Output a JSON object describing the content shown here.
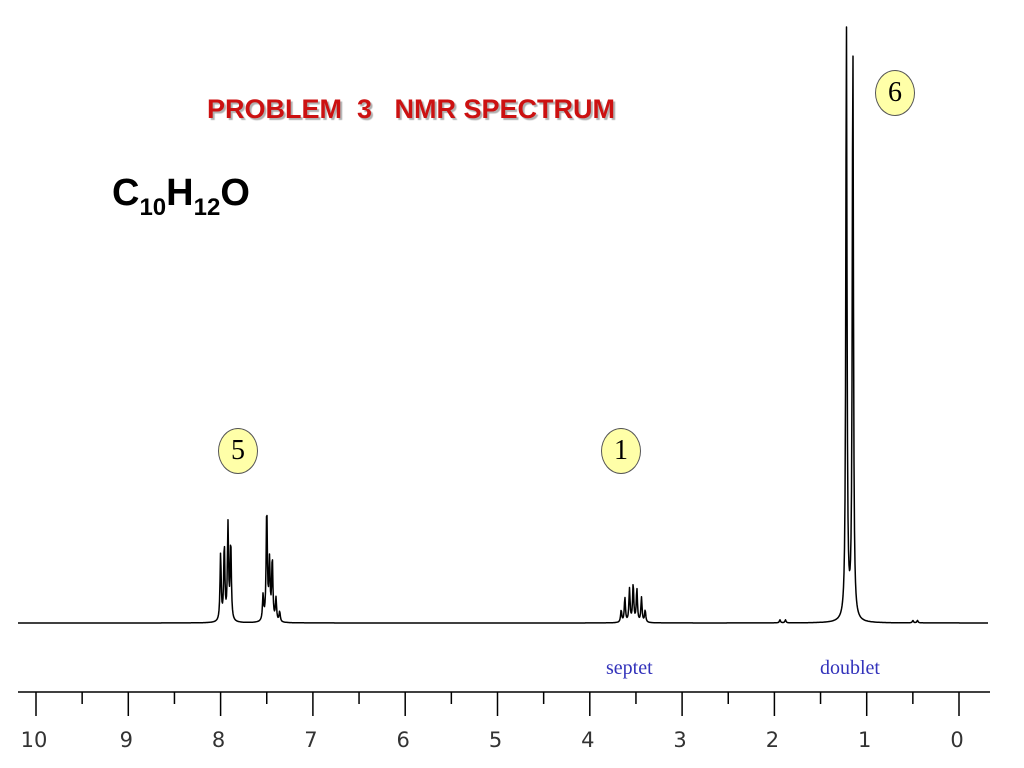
{
  "title": "PROBLEM  3   NMR SPECTRUM",
  "formula": {
    "c": "C",
    "c_sub": "10",
    "h": "H",
    "h_sub": "12",
    "o": "O"
  },
  "colors": {
    "title": "#cc1111",
    "multiplicity": "#3333bb",
    "badge": "#ffffa8",
    "trace": "#000000"
  },
  "integrations": [
    {
      "value": "5",
      "ppm": 7.7
    },
    {
      "value": "1",
      "ppm": 3.55
    },
    {
      "value": "6",
      "ppm": 0.9
    }
  ],
  "multiplicities": [
    {
      "label": "septet",
      "ppm": 3.55
    },
    {
      "label": "doublet",
      "ppm": 1.0
    }
  ],
  "chart_data": {
    "type": "line",
    "x_axis": {
      "range": [
        10,
        0
      ],
      "reversed": true,
      "ticks": [
        10,
        9,
        8,
        7,
        6,
        5,
        4,
        3,
        2,
        1,
        0
      ],
      "minor_step": 0.5
    },
    "grid": false,
    "peaks": [
      {
        "ppm": 8.0,
        "height": 0.112
      },
      {
        "ppm": 7.96,
        "height": 0.126
      },
      {
        "ppm": 7.92,
        "height": 0.158
      },
      {
        "ppm": 7.89,
        "height": 0.131
      },
      {
        "ppm": 7.54,
        "height": 0.042
      },
      {
        "ppm": 7.5,
        "height": 0.19
      },
      {
        "ppm": 7.47,
        "height": 0.096
      },
      {
        "ppm": 7.44,
        "height": 0.104
      },
      {
        "ppm": 7.4,
        "height": 0.038
      },
      {
        "ppm": 7.36,
        "height": 0.017
      },
      {
        "ppm": 3.66,
        "height": 0.02
      },
      {
        "ppm": 3.62,
        "height": 0.041
      },
      {
        "ppm": 3.57,
        "height": 0.055
      },
      {
        "ppm": 3.53,
        "height": 0.063
      },
      {
        "ppm": 3.49,
        "height": 0.055
      },
      {
        "ppm": 3.44,
        "height": 0.041
      },
      {
        "ppm": 3.4,
        "height": 0.02
      },
      {
        "ppm": 1.94,
        "height": 0.005
      },
      {
        "ppm": 1.88,
        "height": 0.005
      },
      {
        "ppm": 1.22,
        "height": 1.0
      },
      {
        "ppm": 1.15,
        "height": 0.97
      },
      {
        "ppm": 0.5,
        "height": 0.004
      },
      {
        "ppm": 0.45,
        "height": 0.004
      }
    ]
  }
}
